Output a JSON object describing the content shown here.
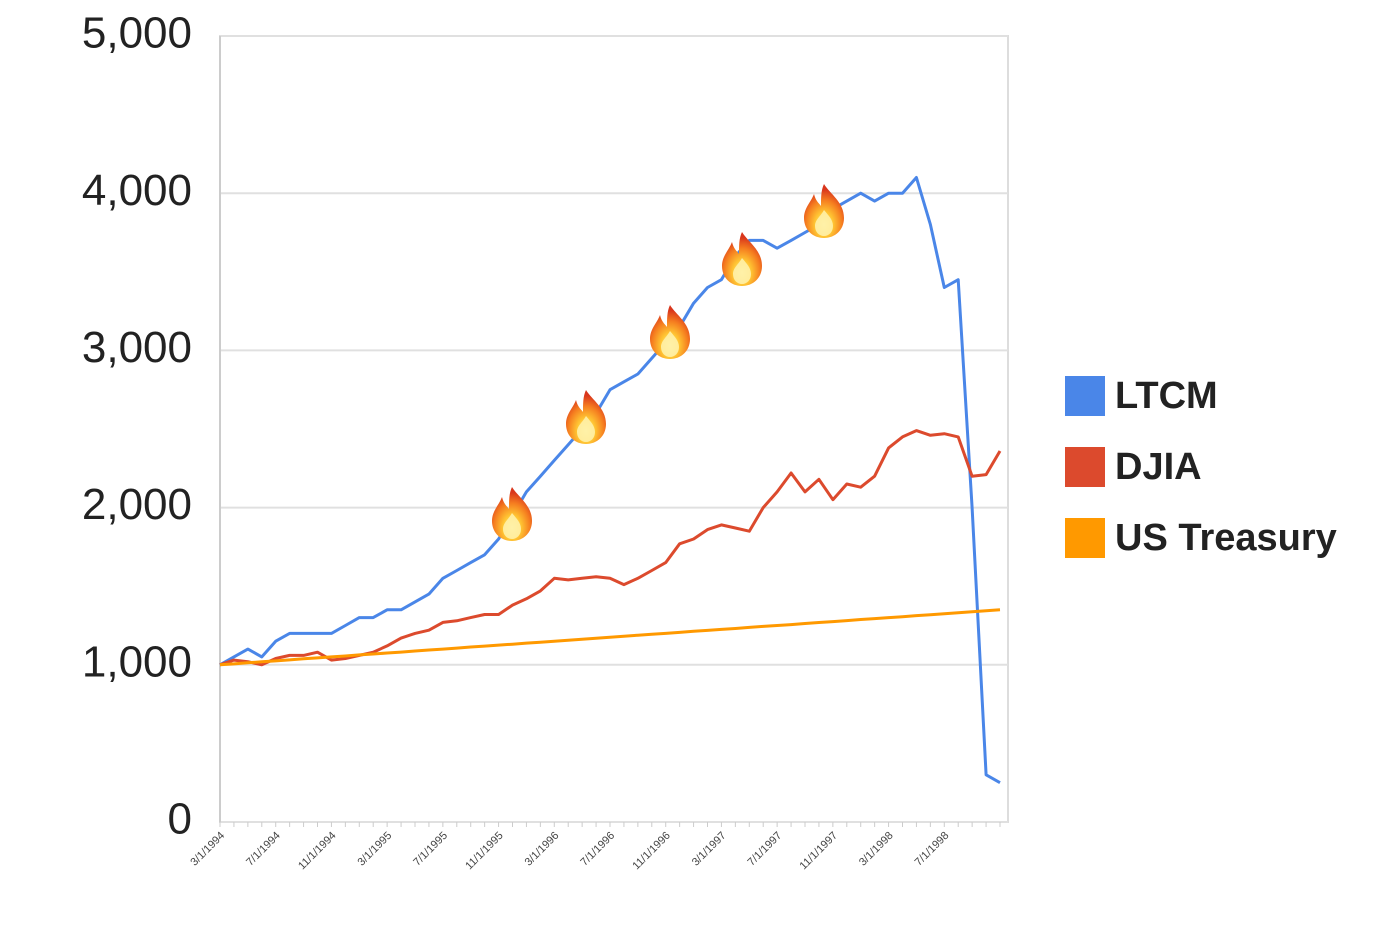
{
  "chart_data": {
    "type": "line",
    "categories": [
      "3/1/1994",
      null,
      null,
      null,
      "7/1/1994",
      null,
      null,
      null,
      "11/1/1994",
      null,
      null,
      null,
      "3/1/1995",
      null,
      null,
      null,
      "7/1/1995",
      null,
      null,
      null,
      "11/1/1995",
      null,
      null,
      null,
      "3/1/1996",
      null,
      null,
      null,
      "7/1/1996",
      null,
      null,
      null,
      "11/1/1996",
      null,
      null,
      null,
      "3/1/1997",
      null,
      null,
      null,
      "7/1/1997",
      null,
      null,
      null,
      "11/1/1997",
      null,
      null,
      null,
      "3/1/1998",
      null,
      null,
      null,
      "7/1/1998",
      null,
      null,
      null,
      null
    ],
    "series": [
      {
        "name": "LTCM",
        "color": "#4a86e8",
        "values": [
          1000,
          1050,
          1100,
          1050,
          1150,
          1200,
          1200,
          1200,
          1200,
          1250,
          1300,
          1300,
          1350,
          1350,
          1400,
          1450,
          1550,
          1600,
          1650,
          1700,
          1800,
          1950,
          2100,
          2200,
          2300,
          2400,
          2500,
          2600,
          2750,
          2800,
          2850,
          2950,
          3050,
          3150,
          3300,
          3400,
          3450,
          3600,
          3700,
          3700,
          3650,
          3700,
          3750,
          3800,
          3900,
          3950,
          4000,
          3950,
          4000,
          4000,
          4100,
          3800,
          3400,
          3450,
          2000,
          300,
          250
        ]
      },
      {
        "name": "DJIA",
        "color": "#dc4a2d",
        "values": [
          1000,
          1030,
          1020,
          1000,
          1040,
          1060,
          1060,
          1080,
          1030,
          1040,
          1060,
          1080,
          1120,
          1170,
          1200,
          1220,
          1270,
          1280,
          1300,
          1320,
          1320,
          1380,
          1420,
          1470,
          1550,
          1540,
          1550,
          1560,
          1550,
          1510,
          1550,
          1600,
          1650,
          1770,
          1800,
          1860,
          1890,
          1870,
          1850,
          2000,
          2100,
          2220,
          2100,
          2180,
          2050,
          2150,
          2130,
          2200,
          2380,
          2450,
          2490,
          2460,
          2470,
          2450,
          2200,
          2210,
          2360
        ]
      },
      {
        "name": "US Treasury",
        "color": "#ff9900",
        "values": [
          1000,
          1006,
          1013,
          1019,
          1025,
          1031,
          1038,
          1044,
          1050,
          1056,
          1063,
          1069,
          1075,
          1081,
          1088,
          1094,
          1100,
          1106,
          1113,
          1119,
          1125,
          1131,
          1138,
          1144,
          1150,
          1156,
          1163,
          1169,
          1175,
          1181,
          1188,
          1194,
          1200,
          1206,
          1213,
          1219,
          1225,
          1231,
          1238,
          1244,
          1250,
          1256,
          1263,
          1269,
          1275,
          1281,
          1288,
          1294,
          1300,
          1306,
          1313,
          1319,
          1325,
          1331,
          1338,
          1344,
          1350
        ]
      }
    ],
    "ylim": [
      0,
      5000
    ],
    "yticks": [
      0,
      {
        "value": 1000,
        "label": "1,000"
      },
      {
        "value": 2000,
        "label": "2,000"
      },
      {
        "value": 3000,
        "label": "3,000"
      },
      {
        "value": 4000,
        "label": "4,000"
      },
      {
        "value": 5000,
        "label": "5,000"
      }
    ],
    "grid": true,
    "legend": "right"
  }
}
